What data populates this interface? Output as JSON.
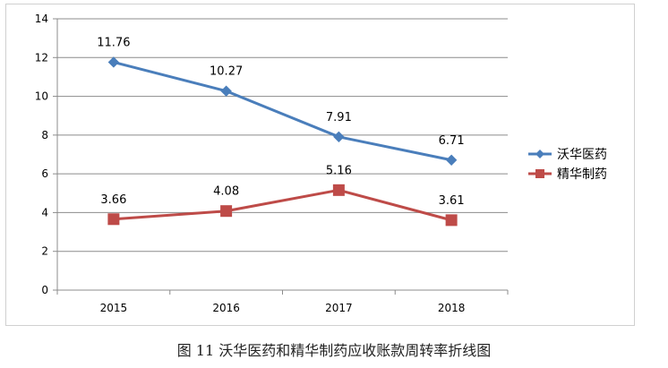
{
  "chart_data": {
    "type": "line",
    "categories": [
      "2015",
      "2016",
      "2017",
      "2018"
    ],
    "series": [
      {
        "name": "沃华医药",
        "values": [
          11.76,
          10.27,
          7.91,
          6.71
        ],
        "color": "#4a7ebb",
        "marker": "diamond"
      },
      {
        "name": "精华制药",
        "values": [
          3.66,
          4.08,
          5.16,
          3.61
        ],
        "color": "#be4b48",
        "marker": "square"
      }
    ],
    "data_labels": [
      [
        "11.76",
        "10.27",
        "7.91",
        "6.71"
      ],
      [
        "3.66",
        "4.08",
        "5.16",
        "3.61"
      ]
    ],
    "y_ticks": [
      "0",
      "2",
      "4",
      "6",
      "8",
      "10",
      "12",
      "14"
    ],
    "ylim": [
      0,
      14
    ],
    "grid": true,
    "legend_position": "right",
    "xlabel": "",
    "ylabel": ""
  },
  "caption": "图 11 沃华医药和精华制药应收账款周转率折线图"
}
